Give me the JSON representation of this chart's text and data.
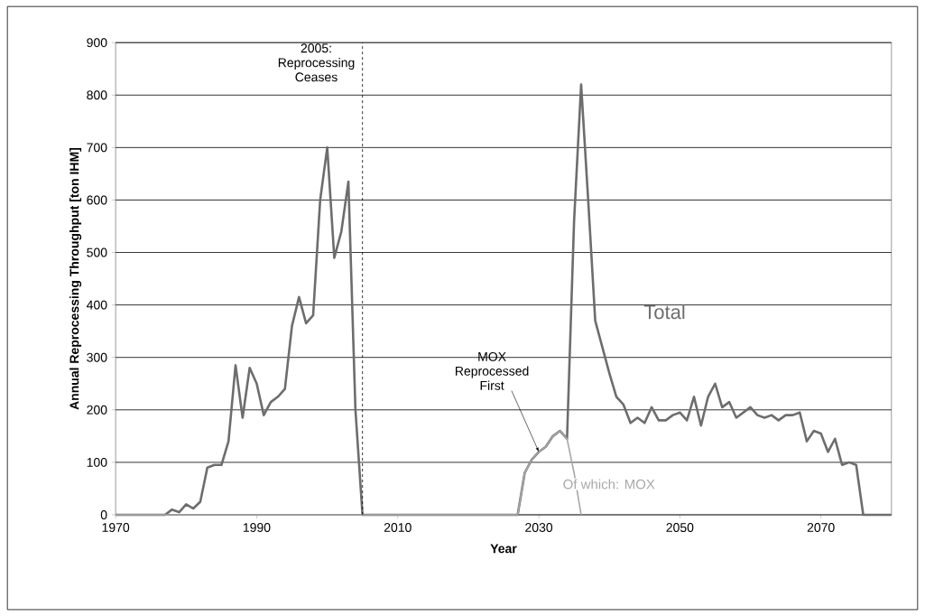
{
  "chart_data": {
    "type": "line",
    "xlabel": "Year",
    "ylabel": "Annual Reprocessing Throughput [ton IHM]",
    "x": [
      1970,
      1971,
      1972,
      1973,
      1974,
      1975,
      1976,
      1977,
      1978,
      1979,
      1980,
      1981,
      1982,
      1983,
      1984,
      1985,
      1986,
      1987,
      1988,
      1989,
      1990,
      1991,
      1992,
      1993,
      1994,
      1995,
      1996,
      1997,
      1998,
      1999,
      2000,
      2001,
      2002,
      2003,
      2004,
      2005,
      2006,
      2007,
      2008,
      2009,
      2010,
      2011,
      2012,
      2013,
      2014,
      2015,
      2016,
      2017,
      2018,
      2019,
      2020,
      2021,
      2022,
      2023,
      2024,
      2025,
      2026,
      2027,
      2028,
      2029,
      2030,
      2031,
      2032,
      2033,
      2034,
      2035,
      2036,
      2037,
      2038,
      2039,
      2040,
      2041,
      2042,
      2043,
      2044,
      2045,
      2046,
      2047,
      2048,
      2049,
      2050,
      2051,
      2052,
      2053,
      2054,
      2055,
      2056,
      2057,
      2058,
      2059,
      2060,
      2061,
      2062,
      2063,
      2064,
      2065,
      2066,
      2067,
      2068,
      2069,
      2070,
      2071,
      2072,
      2073,
      2074,
      2075,
      2076,
      2077,
      2078,
      2079,
      2080
    ],
    "series": [
      {
        "name": "Total",
        "color": "#6d6d6d",
        "values": [
          0,
          0,
          0,
          0,
          0,
          0,
          0,
          0,
          10,
          5,
          20,
          12,
          25,
          90,
          95,
          95,
          140,
          285,
          185,
          280,
          250,
          190,
          215,
          225,
          240,
          360,
          415,
          365,
          380,
          600,
          700,
          490,
          540,
          635,
          200,
          0,
          0,
          0,
          0,
          0,
          0,
          0,
          0,
          0,
          0,
          0,
          0,
          0,
          0,
          0,
          0,
          0,
          0,
          0,
          0,
          0,
          0,
          0,
          80,
          105,
          120,
          130,
          150,
          160,
          145,
          560,
          820,
          600,
          370,
          320,
          270,
          225,
          210,
          175,
          185,
          175,
          205,
          180,
          180,
          190,
          195,
          180,
          225,
          170,
          225,
          250,
          205,
          215,
          185,
          195,
          205,
          190,
          185,
          190,
          180,
          190,
          190,
          195,
          140,
          160,
          155,
          120,
          145,
          95,
          100,
          95,
          0,
          0,
          0,
          0,
          0
        ]
      },
      {
        "name": "Of which: MOX",
        "color": "#a8a8a8",
        "values": [
          0,
          0,
          0,
          0,
          0,
          0,
          0,
          0,
          0,
          0,
          0,
          0,
          0,
          0,
          0,
          0,
          0,
          0,
          0,
          0,
          0,
          0,
          0,
          0,
          0,
          0,
          0,
          0,
          0,
          0,
          0,
          0,
          0,
          0,
          0,
          0,
          0,
          0,
          0,
          0,
          0,
          0,
          0,
          0,
          0,
          0,
          0,
          0,
          0,
          0,
          0,
          0,
          0,
          0,
          0,
          0,
          0,
          0,
          80,
          105,
          120,
          130,
          150,
          160,
          145,
          80,
          0,
          null,
          null,
          null,
          null,
          null,
          null,
          null,
          null,
          null,
          null,
          null,
          null,
          null,
          null,
          null,
          null,
          null,
          null,
          null,
          null,
          null,
          null,
          null,
          null,
          null,
          null,
          null,
          null,
          null,
          null,
          null,
          null,
          null,
          null,
          null,
          null,
          null,
          null,
          null,
          null,
          null,
          null,
          null,
          null
        ]
      }
    ],
    "xlim": [
      1970,
      2080
    ],
    "xticks": [
      1970,
      1990,
      2010,
      2030,
      2050,
      2070
    ],
    "ylim": [
      0,
      900
    ],
    "yticks": [
      0,
      100,
      200,
      300,
      400,
      500,
      600,
      700,
      800,
      900
    ],
    "grid": "y",
    "legend": false,
    "marker": "none",
    "line_style": "solid",
    "ref_lines": [
      {
        "axis": "x",
        "value": 2005,
        "label": "2005: Reprocessing Ceases",
        "line_style": "dashed",
        "color": "#000000"
      }
    ],
    "annotations": [
      {
        "text": "MOX Reprocessed First",
        "x": 2030,
        "y": 120
      }
    ]
  }
}
